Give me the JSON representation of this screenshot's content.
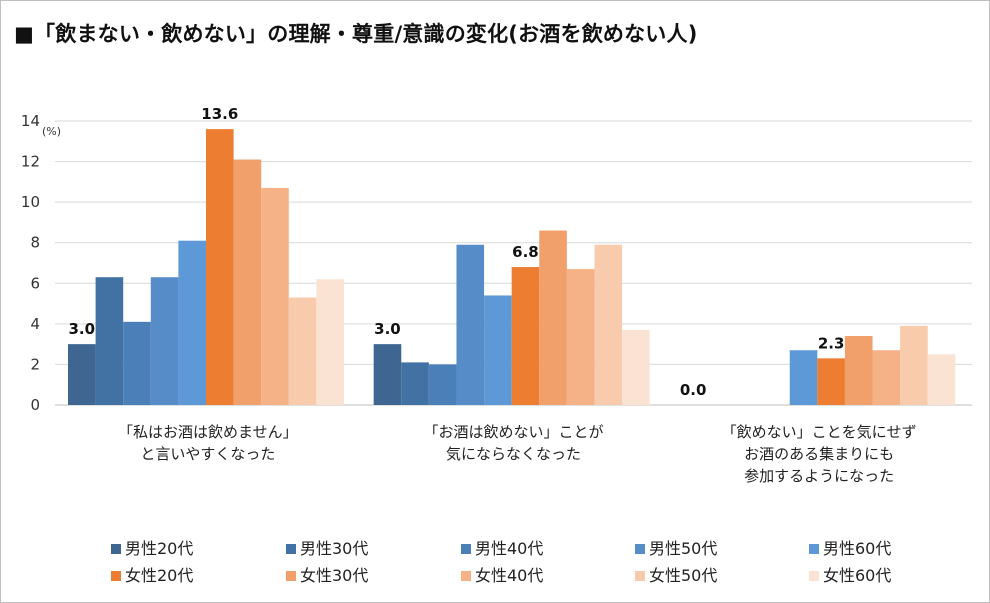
{
  "title": "■「飲まない・飲めない」の理解・尊重/意識の変化(お酒を飲めない人)",
  "chart_data": {
    "type": "bar",
    "unit": "(%)",
    "ylim": [
      0,
      14
    ],
    "yticks": [
      0,
      2,
      4,
      6,
      8,
      10,
      12,
      14
    ],
    "grid": true,
    "legend_position": "bottom",
    "categories": [
      [
        "「私はお酒は飲めません」",
        "と言いやすくなった"
      ],
      [
        "「お酒は飲めない」ことが",
        "気にならなくなった"
      ],
      [
        "「飲めない」ことを気にせず",
        "お酒のある集まりにも",
        "参加するようになった"
      ]
    ],
    "series": [
      {
        "name": "男性20代",
        "color": "#3e6690",
        "values": [
          3.0,
          3.0,
          0.0
        ]
      },
      {
        "name": "男性30代",
        "color": "#4271a3",
        "values": [
          6.3,
          2.1,
          null
        ]
      },
      {
        "name": "男性40代",
        "color": "#4b7fb8",
        "values": [
          4.1,
          2.0,
          null
        ]
      },
      {
        "name": "男性50代",
        "color": "#568dc9",
        "values": [
          6.3,
          7.9,
          null
        ]
      },
      {
        "name": "男性60代",
        "color": "#5d99d6",
        "values": [
          8.1,
          5.4,
          2.7
        ]
      },
      {
        "name": "女性20代",
        "color": "#ed7d31",
        "values": [
          13.6,
          6.8,
          2.3
        ]
      },
      {
        "name": "女性30代",
        "color": "#f19f6b",
        "values": [
          12.1,
          8.6,
          3.4
        ]
      },
      {
        "name": "女性40代",
        "color": "#f4b286",
        "values": [
          10.7,
          6.7,
          2.7
        ]
      },
      {
        "name": "女性50代",
        "color": "#f8cbad",
        "values": [
          5.3,
          7.9,
          3.9
        ]
      },
      {
        "name": "女性60代",
        "color": "#fbe3d3",
        "values": [
          6.2,
          3.7,
          2.5
        ]
      }
    ],
    "data_labels": [
      {
        "series": 0,
        "category": 0,
        "text": "3.0"
      },
      {
        "series": 5,
        "category": 0,
        "text": "13.6"
      },
      {
        "series": 0,
        "category": 1,
        "text": "3.0"
      },
      {
        "series": 5,
        "category": 1,
        "text": "6.8"
      },
      {
        "series": 0,
        "category": 2,
        "text": "0.0"
      },
      {
        "series": 5,
        "category": 2,
        "text": "2.3"
      }
    ]
  }
}
